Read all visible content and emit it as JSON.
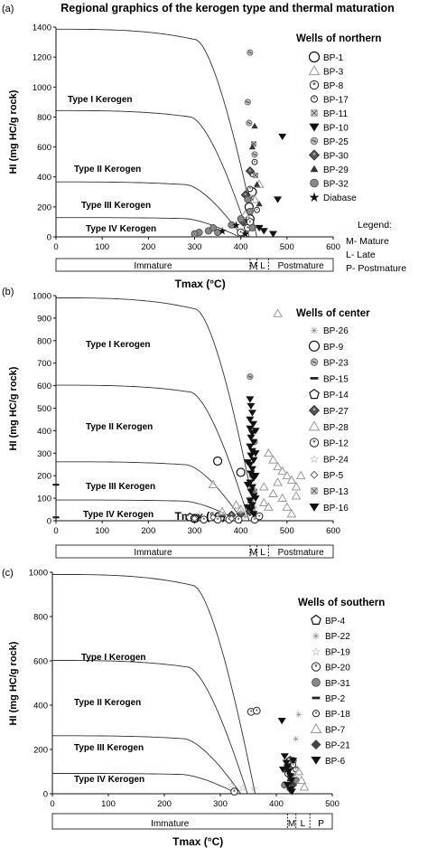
{
  "title": "Regional graphics of the kerogen type and thermal maturation",
  "legend_note": {
    "heading": "Legend:",
    "lines": [
      "M- Mature",
      "L- Late",
      "P- Postmature"
    ]
  },
  "chart_data": [
    {
      "type": "scatter",
      "panel_label": "(a)",
      "xlabel": "Tmax (°C)",
      "ylabel": "HI (mg HC/g rock)",
      "xlim": [
        0,
        600
      ],
      "ylim": [
        0,
        1400
      ],
      "xticks": [
        "0",
        "100",
        "200",
        "300",
        "400",
        "500",
        "600"
      ],
      "yticks": [
        "0",
        "200",
        "400",
        "600",
        "800",
        "1000",
        "1200",
        "1400"
      ],
      "kerogen_labels": [
        "Type I Kerogen",
        "Type II Kerogen",
        "Type III Kerogen",
        "Type IV Kerogen"
      ],
      "maturity_zones": [
        {
          "label": "Immature",
          "from": 0,
          "to": 420
        },
        {
          "label": "M",
          "from": 420,
          "to": 435
        },
        {
          "label": "L",
          "from": 435,
          "to": 460
        },
        {
          "label": "Postmature",
          "from": 460,
          "to": 600
        }
      ],
      "legend_title": "Wells of northern",
      "series": [
        {
          "name": "BP-1",
          "marker": "circle-open",
          "points": [
            [
              420,
              120
            ],
            [
              425,
              300
            ],
            [
              418,
              200
            ]
          ]
        },
        {
          "name": "BP-3",
          "marker": "triangle-open",
          "points": [
            [
              410,
              150
            ],
            [
              430,
              250
            ],
            [
              440,
              350
            ],
            [
              425,
              80
            ]
          ]
        },
        {
          "name": "BP-8",
          "marker": "star-circle",
          "points": [
            [
              415,
              60
            ],
            [
              400,
              30
            ],
            [
              420,
              100
            ]
          ]
        },
        {
          "name": "BP-17",
          "marker": "star-circle-small",
          "points": [
            [
              425,
              420
            ],
            [
              430,
              500
            ],
            [
              420,
              320
            ],
            [
              435,
              180
            ]
          ]
        },
        {
          "name": "BP-11",
          "marker": "square-x",
          "points": [
            [
              428,
              620
            ],
            [
              432,
              410
            ],
            [
              422,
              260
            ]
          ]
        },
        {
          "name": "BP-10",
          "marker": "triangle-down-filled",
          "points": [
            [
              470,
              20
            ],
            [
              480,
              250
            ],
            [
              490,
              670
            ],
            [
              440,
              60
            ],
            [
              450,
              40
            ]
          ]
        },
        {
          "name": "BP-25",
          "marker": "hatched-circle",
          "points": [
            [
              420,
              1230
            ],
            [
              415,
              900
            ],
            [
              418,
              760
            ],
            [
              430,
              550
            ]
          ]
        },
        {
          "name": "BP-30",
          "marker": "diamond-star",
          "points": [
            [
              420,
              440
            ],
            [
              410,
              280
            ],
            [
              405,
              100
            ]
          ]
        },
        {
          "name": "BP-29",
          "marker": "triangle-filled",
          "points": [
            [
              430,
              740
            ],
            [
              425,
              600
            ],
            [
              435,
              350
            ],
            [
              440,
              220
            ]
          ]
        },
        {
          "name": "BP-32",
          "marker": "circle-gray",
          "points": [
            [
              310,
              30
            ],
            [
              330,
              40
            ],
            [
              350,
              30
            ],
            [
              380,
              80
            ],
            [
              400,
              120
            ],
            [
              415,
              250
            ],
            [
              420,
              170
            ],
            [
              425,
              60
            ],
            [
              340,
              60
            ],
            [
              300,
              20
            ]
          ]
        },
        {
          "name": "Diabase",
          "marker": "star",
          "points": [
            [
              390,
              80
            ],
            [
              410,
              20
            ],
            [
              360,
              40
            ]
          ]
        }
      ]
    },
    {
      "type": "scatter",
      "panel_label": "(b)",
      "xlabel": "Tmax (°C)",
      "ylabel": "HI (mg HC/g rock)",
      "xlim": [
        0,
        600
      ],
      "ylim": [
        0,
        1000
      ],
      "xticks": [
        "0",
        "100",
        "200",
        "300",
        "400",
        "500",
        "600"
      ],
      "yticks": [
        "0",
        "100",
        "200",
        "300",
        "400",
        "500",
        "600",
        "700",
        "800",
        "900",
        "1000"
      ],
      "kerogen_labels": [
        "Type I Kerogen",
        "Type II Kerogen",
        "Type III Kerogen",
        "Type IV Kerogen"
      ],
      "maturity_zones": [
        {
          "label": "Immature",
          "from": 0,
          "to": 420
        },
        {
          "label": "M",
          "from": 420,
          "to": 435
        },
        {
          "label": "L",
          "from": 435,
          "to": 460
        },
        {
          "label": "Postmature",
          "from": 460,
          "to": 600
        }
      ],
      "legend_title": "Wells of center",
      "series": [
        {
          "name": "BP-26",
          "marker": "star-small",
          "points": [
            [
              420,
              100
            ],
            [
              430,
              60
            ],
            [
              410,
              20
            ]
          ]
        },
        {
          "name": "BP-9",
          "marker": "circle-open",
          "points": [
            [
              350,
              265
            ],
            [
              400,
              215
            ],
            [
              300,
              10
            ]
          ]
        },
        {
          "name": "BP-23",
          "marker": "hatched-circle",
          "points": [
            [
              420,
              640
            ],
            [
              430,
              350
            ],
            [
              425,
              200
            ]
          ]
        },
        {
          "name": "BP-15",
          "marker": "dash",
          "points": [
            [
              0,
              160
            ],
            [
              0,
              15
            ],
            [
              360,
              20
            ]
          ]
        },
        {
          "name": "BP-14",
          "marker": "pentagon-open",
          "points": [
            [
              290,
              15
            ],
            [
              300,
              10
            ]
          ]
        },
        {
          "name": "BP-27",
          "marker": "diamond-star",
          "points": [
            [
              380,
              25
            ],
            [
              400,
              30
            ],
            [
              420,
              40
            ]
          ]
        },
        {
          "name": "BP-28",
          "marker": "triangle-open",
          "points": [
            [
              480,
              920
            ],
            [
              340,
              160
            ],
            [
              460,
              300
            ],
            [
              470,
              270
            ],
            [
              480,
              240
            ],
            [
              490,
              220
            ],
            [
              500,
              200
            ],
            [
              510,
              180
            ],
            [
              520,
              150
            ],
            [
              470,
              120
            ],
            [
              490,
              100
            ],
            [
              450,
              80
            ],
            [
              460,
              60
            ],
            [
              500,
              60
            ],
            [
              510,
              30
            ],
            [
              520,
              110
            ],
            [
              400,
              50
            ],
            [
              390,
              70
            ],
            [
              360,
              40
            ],
            [
              480,
              170
            ],
            [
              450,
              150
            ],
            [
              530,
              200
            ]
          ]
        },
        {
          "name": "BP-12",
          "marker": "star-circle",
          "points": [
            [
              320,
              5
            ],
            [
              350,
              5
            ],
            [
              375,
              5
            ],
            [
              395,
              5
            ],
            [
              430,
              5
            ],
            [
              440,
              20
            ]
          ]
        },
        {
          "name": "BP-24",
          "marker": "star-outline",
          "points": [
            [
              280,
              20
            ],
            [
              310,
              30
            ],
            [
              340,
              30
            ],
            [
              360,
              20
            ]
          ]
        },
        {
          "name": "BP-5",
          "marker": "diamond-small",
          "points": [
            [
              300,
              10
            ],
            [
              340,
              15
            ],
            [
              380,
              10
            ]
          ]
        },
        {
          "name": "BP-13",
          "marker": "square-x",
          "points": [
            [
              420,
              90
            ],
            [
              425,
              150
            ],
            [
              430,
              130
            ]
          ]
        },
        {
          "name": "BP-16",
          "marker": "triangle-down-filled",
          "points": [
            [
              420,
              540
            ],
            [
              422,
              510
            ],
            [
              425,
              480
            ],
            [
              420,
              450
            ],
            [
              427,
              430
            ],
            [
              420,
              410
            ],
            [
              425,
              390
            ],
            [
              422,
              370
            ],
            [
              428,
              350
            ],
            [
              420,
              330
            ],
            [
              425,
              310
            ],
            [
              422,
              290
            ],
            [
              428,
              270
            ],
            [
              420,
              250
            ],
            [
              425,
              230
            ],
            [
              422,
              210
            ],
            [
              428,
              190
            ],
            [
              420,
              170
            ],
            [
              425,
              150
            ],
            [
              422,
              130
            ],
            [
              428,
              110
            ],
            [
              420,
              90
            ],
            [
              425,
              70
            ],
            [
              422,
              50
            ],
            [
              428,
              30
            ],
            [
              432,
              400
            ],
            [
              432,
              300
            ],
            [
              432,
              200
            ],
            [
              432,
              100
            ],
            [
              415,
              260
            ],
            [
              415,
              160
            ],
            [
              415,
              60
            ]
          ]
        }
      ]
    },
    {
      "type": "scatter",
      "panel_label": "(c)",
      "xlabel": "Tmax (°C)",
      "ylabel": "HI (mg HC/g rock)",
      "xlim": [
        0,
        500
      ],
      "ylim": [
        0,
        1000
      ],
      "xticks": [
        "0",
        "100",
        "200",
        "300",
        "400",
        "500"
      ],
      "yticks": [
        "0",
        "200",
        "400",
        "600",
        "800",
        "1000"
      ],
      "kerogen_labels": [
        "Type I Kerogen",
        "Type II Kerogen",
        "Type III Kerogen",
        "Type IV Kerogen"
      ],
      "maturity_zones": [
        {
          "label": "Immature",
          "from": 0,
          "to": 420
        },
        {
          "label": "M",
          "from": 420,
          "to": 435
        },
        {
          "label": "L",
          "from": 435,
          "to": 460
        },
        {
          "label": "P",
          "from": 460,
          "to": 500
        }
      ],
      "legend_title": "Wells of southern",
      "series": [
        {
          "name": "BP-4",
          "marker": "pentagon-open",
          "points": [
            [
              425,
              150
            ],
            [
              430,
              100
            ]
          ]
        },
        {
          "name": "BP-22",
          "marker": "star-small",
          "points": [
            [
              440,
              360
            ],
            [
              435,
              250
            ]
          ]
        },
        {
          "name": "BP-19",
          "marker": "star-outline",
          "points": [
            [
              320,
              40
            ],
            [
              340,
              30
            ],
            [
              360,
              25
            ],
            [
              330,
              10
            ]
          ]
        },
        {
          "name": "BP-20",
          "marker": "star-circle",
          "points": [
            [
              355,
              370
            ],
            [
              365,
              375
            ],
            [
              325,
              10
            ]
          ]
        },
        {
          "name": "BP-31",
          "marker": "circle-gray",
          "points": [
            [
              420,
              120
            ],
            [
              425,
              80
            ],
            [
              430,
              150
            ],
            [
              415,
              40
            ],
            [
              435,
              60
            ]
          ]
        },
        {
          "name": "BP-2",
          "marker": "dash",
          "points": [
            [
              425,
              60
            ],
            [
              420,
              100
            ]
          ]
        },
        {
          "name": "BP-18",
          "marker": "star-circle-small",
          "points": [
            [
              430,
              130
            ],
            [
              420,
              90
            ],
            [
              435,
              110
            ]
          ]
        },
        {
          "name": "BP-7",
          "marker": "triangle-open",
          "points": [
            [
              440,
              100
            ],
            [
              445,
              60
            ],
            [
              450,
              30
            ]
          ]
        },
        {
          "name": "BP-21",
          "marker": "diamond-filled",
          "points": [
            [
              425,
              20
            ],
            [
              430,
              40
            ]
          ]
        },
        {
          "name": "BP-6",
          "marker": "triangle-down-filled",
          "points": [
            [
              410,
              330
            ],
            [
              415,
              170
            ],
            [
              418,
              140
            ],
            [
              420,
              120
            ],
            [
              422,
              100
            ],
            [
              425,
              80
            ],
            [
              427,
              60
            ],
            [
              420,
              40
            ],
            [
              425,
              20
            ],
            [
              430,
              150
            ],
            [
              412,
              110
            ],
            [
              428,
              10
            ]
          ]
        }
      ]
    }
  ]
}
